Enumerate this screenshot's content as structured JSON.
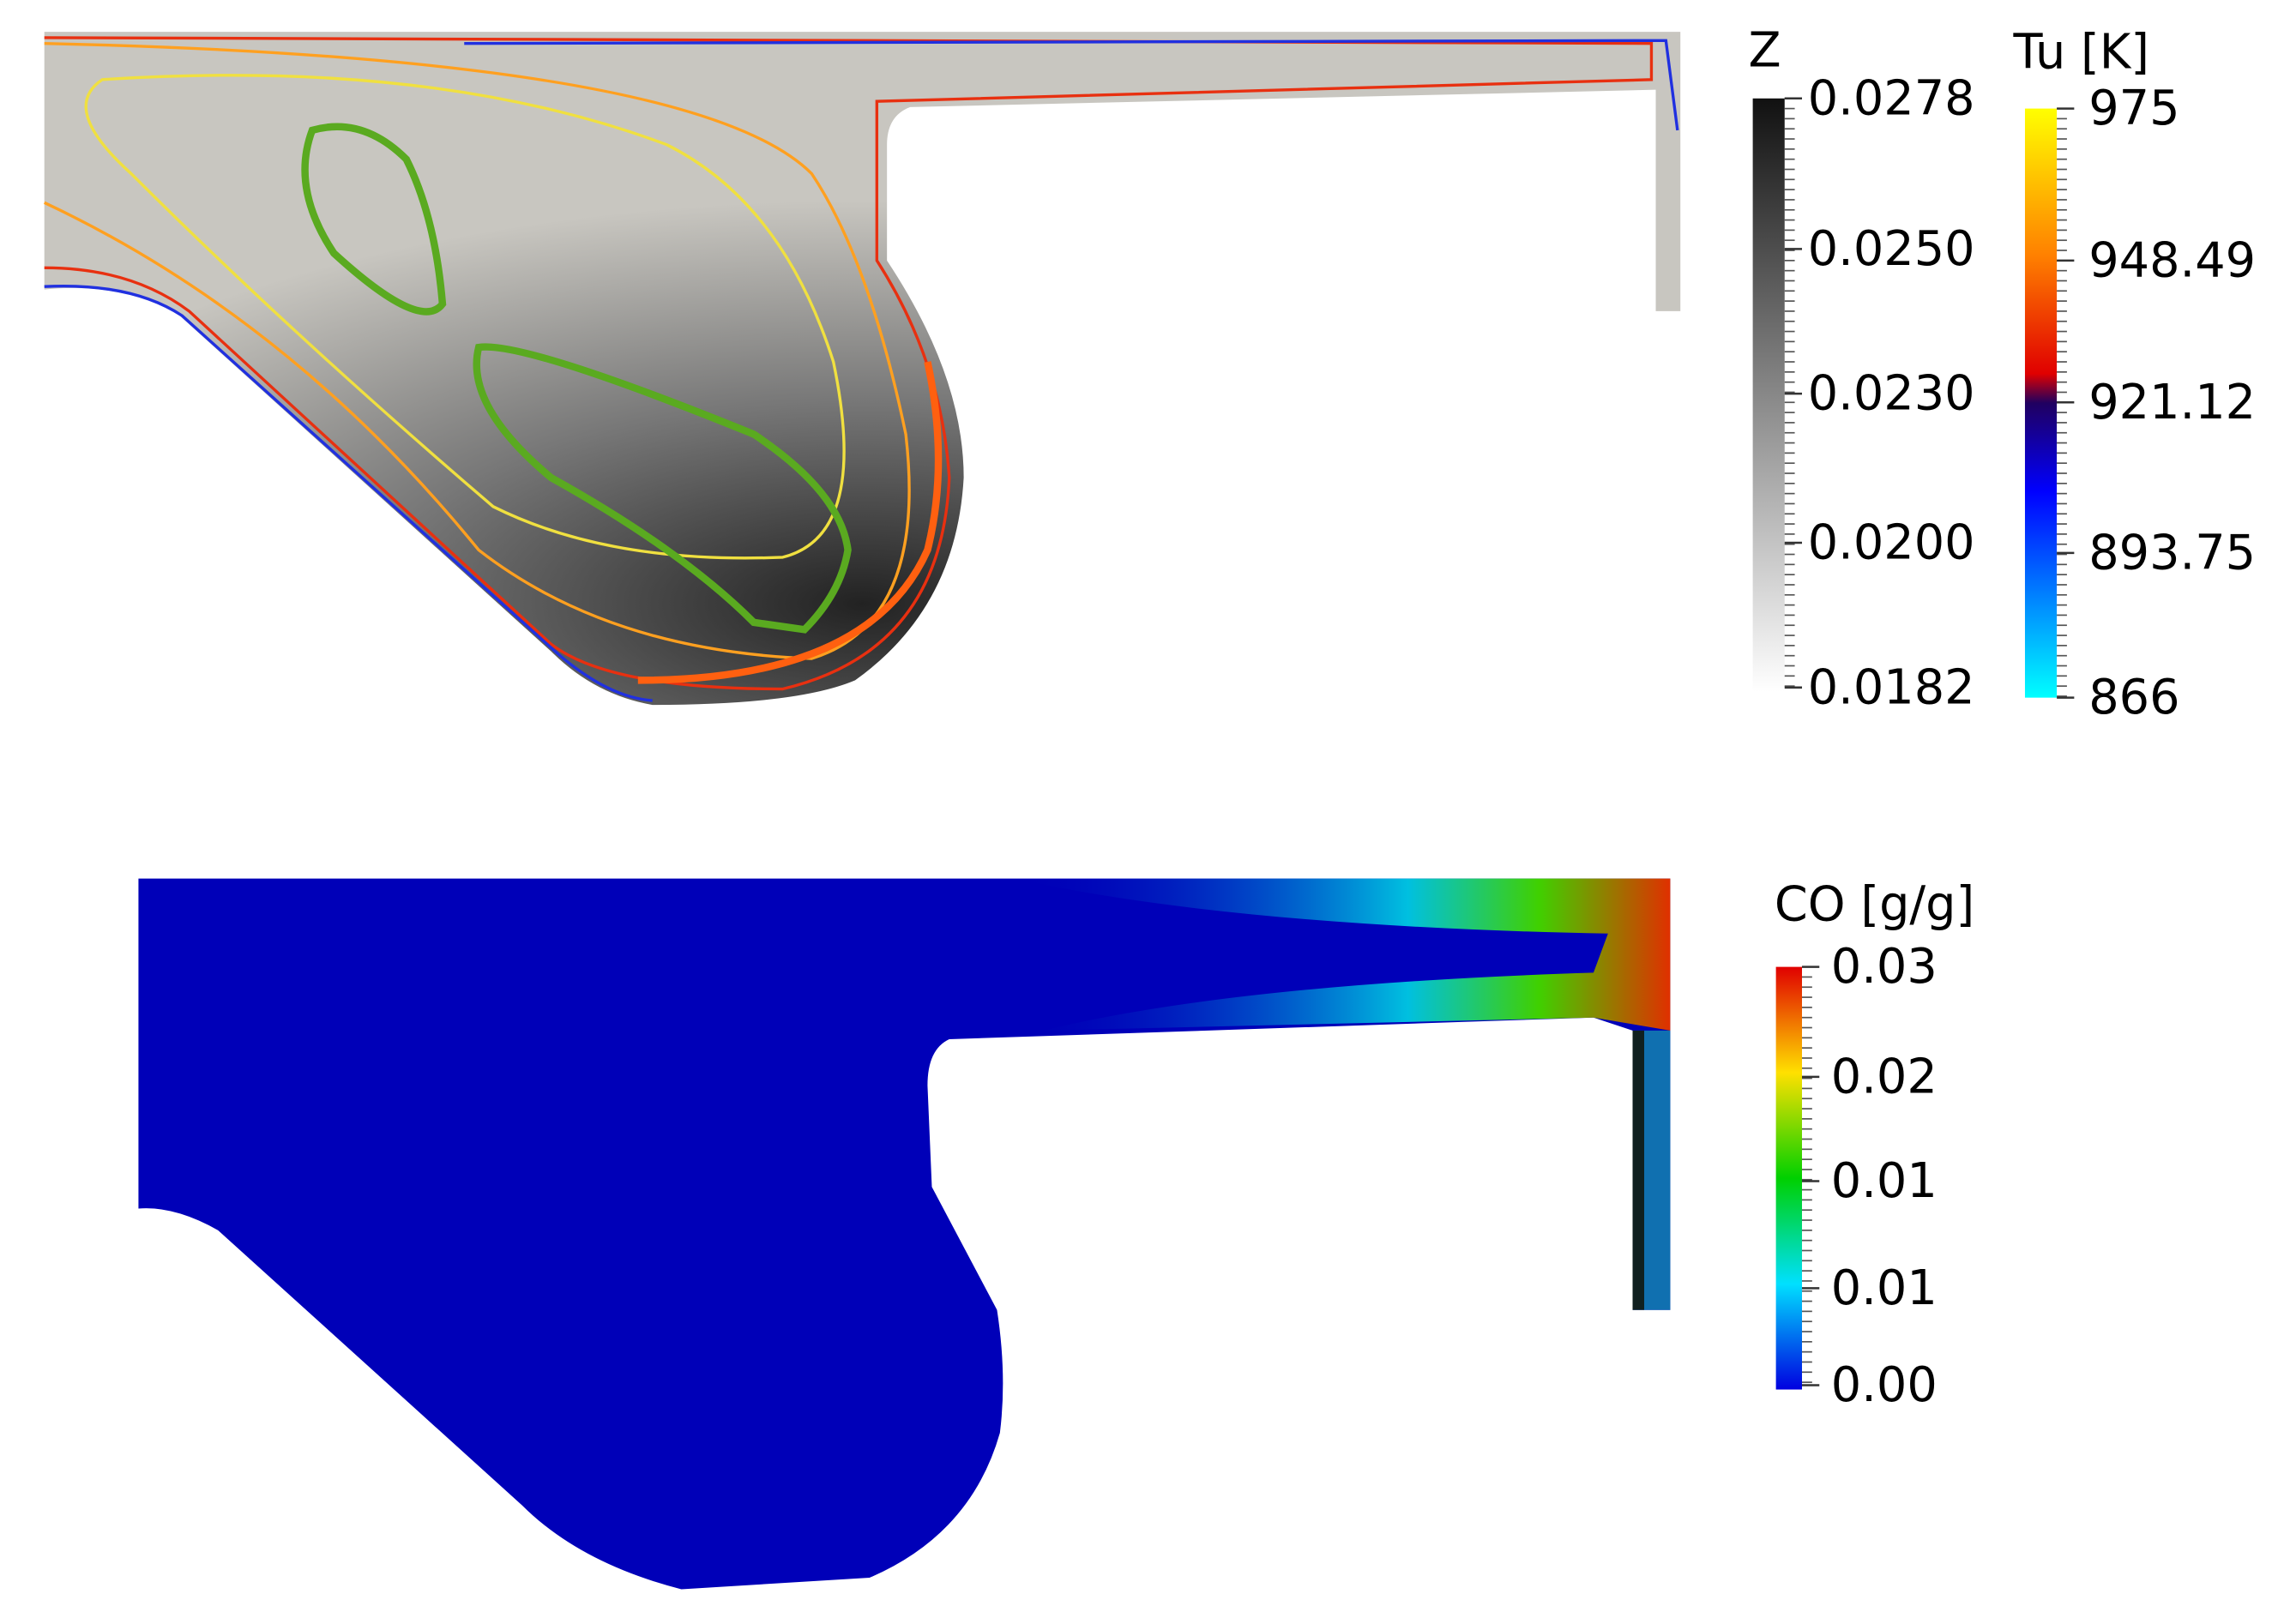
{
  "colorbars": [
    {
      "title": "Z",
      "labels": [
        "0.0278",
        "0.0250",
        "0.0230",
        "0.0200",
        "0.0182"
      ]
    },
    {
      "title": "Tu [K]",
      "labels": [
        "975",
        "948.49",
        "921.12",
        "893.75",
        "866"
      ]
    },
    {
      "title": "CO [g/g]",
      "labels": [
        "0.03",
        "0.02",
        "0.01",
        "0.01",
        "0.00"
      ]
    }
  ]
}
